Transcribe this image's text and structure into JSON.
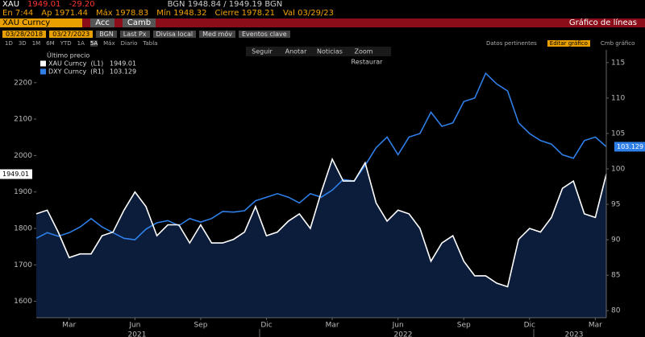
{
  "header": {
    "ticker": "XAU",
    "price": "1949.01",
    "change": "-29.20",
    "bidask": "BGN 1948.84 / 1949.19 BGN",
    "row2": [
      "En 7:44",
      "Ap 1971.44",
      "Máx 1978.83",
      "Mín 1948.32",
      "Cierre 1978.21",
      "Val 03/29/23"
    ]
  },
  "menu": {
    "security": "XAU Curncy",
    "actions": "Acc",
    "change": "Camb",
    "view": "Gráfico de líneas"
  },
  "toolbar": {
    "start": "03/28/2018",
    "end": "03/27/2023",
    "source": "BGN",
    "field": "Last Px",
    "currency": "Divisa local",
    "moving_avg": "Med móv",
    "events": "Eventos clave"
  },
  "periods": [
    "1D",
    "3D",
    "1M",
    "6M",
    "YTD",
    "1A",
    "5A",
    "Máx",
    "Diario",
    "Tabla"
  ],
  "right_tools": [
    "Datos pertinentes",
    "Editar gráfico",
    "Cmb gráfico"
  ],
  "float_tools": [
    "Seguir",
    "Anotar",
    "Noticias",
    "Zoom",
    "Restaurar"
  ],
  "chart_data": {
    "type": "line",
    "legend_title": "Último precio",
    "categories": [
      null,
      null,
      null,
      "Mar",
      null,
      null,
      null,
      null,
      null,
      "Jun",
      null,
      null,
      null,
      null,
      null,
      "Sep",
      null,
      null,
      null,
      null,
      null,
      "Dic",
      null,
      null,
      null,
      null,
      null,
      "Mar",
      null,
      null,
      null,
      null,
      null,
      "Jun",
      null,
      null,
      null,
      null,
      null,
      "Sep",
      null,
      null,
      null,
      null,
      null,
      "Dic",
      null,
      null,
      null,
      null,
      null,
      "Mar",
      null
    ],
    "x_year_labels": [
      "2021",
      "2022",
      "2023"
    ],
    "series": [
      {
        "name": "XAU Curncy  (L1)",
        "color": "#ffffff",
        "area_color": "#0b1d3a",
        "values": [
          1840,
          1850,
          1790,
          1720,
          1730,
          1730,
          1780,
          1790,
          1850,
          1900,
          1860,
          1780,
          1810,
          1810,
          1760,
          1810,
          1760,
          1760,
          1770,
          1790,
          1860,
          1780,
          1790,
          1820,
          1840,
          1800,
          1900,
          1990,
          1930,
          1930,
          1980,
          1870,
          1820,
          1850,
          1840,
          1800,
          1710,
          1760,
          1780,
          1710,
          1670,
          1670,
          1650,
          1640,
          1770,
          1800,
          1790,
          1830,
          1910,
          1930,
          1840,
          1830,
          1949.01
        ]
      },
      {
        "name": "DXY Curncy  (R1)",
        "color": "#2f7fe8",
        "axis": "y2",
        "values": [
          90.2,
          91,
          90.5,
          91,
          91.8,
          93,
          91.8,
          91,
          90.2,
          90,
          91.5,
          92.4,
          92.7,
          92,
          93,
          92.5,
          93,
          94,
          93.9,
          94.1,
          95.5,
          96,
          96.5,
          96,
          95.2,
          96.5,
          96,
          97,
          98.5,
          98.3,
          100.5,
          103,
          104.5,
          102,
          104.5,
          105,
          108,
          106,
          106.5,
          109.5,
          110,
          113.5,
          112,
          111,
          106.5,
          105,
          104,
          103.5,
          102,
          101.5,
          104,
          104.5,
          103.129
        ]
      }
    ],
    "ylim": [
      1555,
      2290
    ],
    "yticks": [
      1600,
      1700,
      1800,
      1900,
      2000,
      2100,
      2200
    ],
    "y2lim": [
      79,
      116.8
    ],
    "y2ticks": [
      80,
      85,
      90,
      95,
      100,
      105,
      110,
      115
    ],
    "grid": false
  }
}
